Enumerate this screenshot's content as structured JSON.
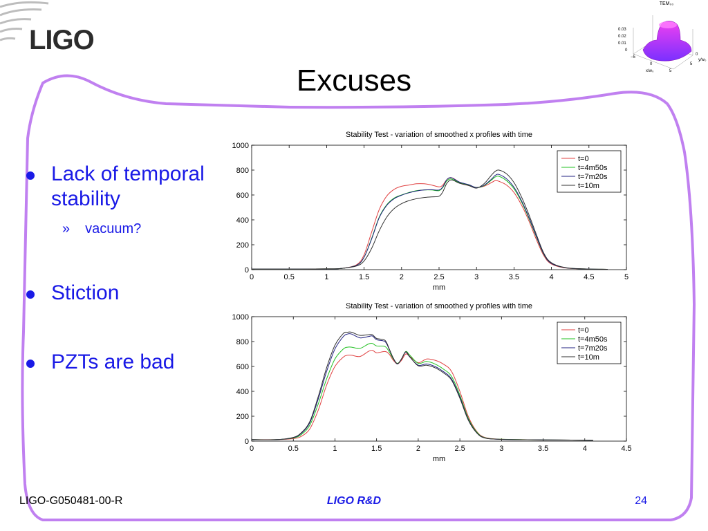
{
  "header": {
    "logo_text": "LIGO",
    "title": "Excuses"
  },
  "mode_plot": {
    "title": "TEM₀₀",
    "z_ticks": [
      "0.03",
      "0.02",
      "0.01",
      "0"
    ],
    "x_ticks": [
      "−5",
      "0",
      "5"
    ],
    "y_ticks": [
      "0",
      "5"
    ],
    "x_label": "x/w₀",
    "y_label": "y/w₀",
    "colors": {
      "top": "#f040f0",
      "bottom": "#7a30ff"
    }
  },
  "bullets": [
    {
      "text": "Lack of temporal stability",
      "sub": [
        "vacuum?"
      ]
    },
    {
      "text": "Stiction",
      "sub": []
    },
    {
      "text": "PZTs are bad",
      "sub": []
    }
  ],
  "sub_marker": "»",
  "footer": {
    "left": "LIGO-G050481-00-R",
    "center": "LIGO R&D",
    "right": "24"
  },
  "chart_data": [
    {
      "type": "line",
      "title": "Stability Test - variation of smoothed x profiles with time",
      "xlabel": "mm",
      "ylabel": "",
      "xlim": [
        0,
        5
      ],
      "ylim": [
        0,
        1000
      ],
      "xticks": [
        0,
        0.5,
        1,
        1.5,
        2,
        2.5,
        3,
        3.5,
        4,
        4.5,
        5
      ],
      "yticks": [
        0,
        200,
        400,
        600,
        800,
        1000
      ],
      "legend": "top-right",
      "x": [
        0,
        0.5,
        1,
        1.2,
        1.4,
        1.5,
        1.6,
        1.7,
        1.8,
        1.9,
        2,
        2.1,
        2.2,
        2.3,
        2.4,
        2.5,
        2.55,
        2.6,
        2.65,
        2.7,
        2.75,
        2.8,
        2.9,
        3,
        3.1,
        3.2,
        3.25,
        3.3,
        3.4,
        3.5,
        3.6,
        3.7,
        3.8,
        3.9,
        4,
        4.2,
        4.5,
        4.75
      ],
      "series": [
        {
          "name": "t=0",
          "color": "#e04040",
          "values": [
            5,
            5,
            6,
            10,
            40,
            120,
            300,
            480,
            590,
            645,
            670,
            680,
            690,
            690,
            680,
            665,
            680,
            720,
            740,
            730,
            710,
            690,
            675,
            660,
            670,
            700,
            715,
            710,
            680,
            620,
            520,
            390,
            240,
            110,
            45,
            12,
            5,
            3
          ]
        },
        {
          "name": "t=4m50s",
          "color": "#20c020",
          "values": [
            5,
            5,
            6,
            10,
            35,
            100,
            250,
            420,
            520,
            575,
            600,
            620,
            635,
            640,
            640,
            635,
            660,
            710,
            730,
            720,
            705,
            695,
            680,
            660,
            675,
            720,
            745,
            750,
            715,
            650,
            545,
            410,
            260,
            120,
            50,
            14,
            5,
            3
          ]
        },
        {
          "name": "t=7m20s",
          "color": "#202080",
          "values": [
            5,
            5,
            6,
            10,
            35,
            100,
            245,
            415,
            515,
            570,
            598,
            618,
            632,
            640,
            642,
            640,
            665,
            720,
            740,
            728,
            710,
            698,
            682,
            660,
            678,
            728,
            758,
            765,
            730,
            662,
            555,
            418,
            265,
            122,
            50,
            14,
            5,
            3
          ]
        },
        {
          "name": "t=10m",
          "color": "#303030",
          "values": [
            5,
            5,
            6,
            10,
            30,
            70,
            170,
            310,
            420,
            490,
            530,
            555,
            570,
            580,
            585,
            590,
            625,
            690,
            720,
            715,
            700,
            690,
            675,
            655,
            690,
            760,
            790,
            800,
            770,
            700,
            585,
            440,
            280,
            130,
            55,
            15,
            5,
            3
          ]
        }
      ]
    },
    {
      "type": "line",
      "title": "Stability Test - variation of smoothed y profiles with time",
      "xlabel": "mm",
      "ylabel": "",
      "xlim": [
        0,
        4.5
      ],
      "ylim": [
        0,
        1000
      ],
      "xticks": [
        0,
        0.5,
        1,
        1.5,
        2,
        2.5,
        3,
        3.5,
        4,
        4.5
      ],
      "yticks": [
        0,
        200,
        400,
        600,
        800,
        1000
      ],
      "legend": "top-right",
      "x": [
        0,
        0.3,
        0.5,
        0.6,
        0.7,
        0.8,
        0.9,
        1.0,
        1.1,
        1.15,
        1.2,
        1.3,
        1.4,
        1.45,
        1.5,
        1.6,
        1.65,
        1.7,
        1.75,
        1.8,
        1.85,
        1.9,
        2.0,
        2.1,
        2.2,
        2.3,
        2.4,
        2.5,
        2.6,
        2.7,
        2.8,
        3.0,
        3.5,
        4.0,
        4.1
      ],
      "series": [
        {
          "name": "t=0",
          "color": "#e04040",
          "values": [
            12,
            12,
            20,
            40,
            100,
            250,
            450,
            600,
            675,
            690,
            690,
            680,
            720,
            730,
            710,
            720,
            700,
            650,
            620,
            650,
            700,
            680,
            630,
            660,
            650,
            620,
            560,
            400,
            200,
            80,
            30,
            15,
            10,
            8,
            6
          ]
        },
        {
          "name": "t=4m50s",
          "color": "#20c020",
          "values": [
            12,
            12,
            25,
            55,
            130,
            300,
            500,
            660,
            740,
            755,
            755,
            745,
            780,
            785,
            765,
            760,
            720,
            660,
            625,
            660,
            720,
            690,
            625,
            640,
            620,
            580,
            520,
            370,
            185,
            75,
            28,
            15,
            10,
            8,
            6
          ]
        },
        {
          "name": "t=7m20s",
          "color": "#202080",
          "values": [
            12,
            12,
            28,
            65,
            150,
            340,
            560,
            740,
            840,
            860,
            860,
            830,
            840,
            845,
            815,
            800,
            740,
            665,
            620,
            660,
            715,
            675,
            610,
            620,
            600,
            560,
            500,
            355,
            175,
            70,
            26,
            14,
            10,
            8,
            6
          ]
        },
        {
          "name": "t=10m",
          "color": "#303030",
          "values": [
            12,
            12,
            30,
            70,
            160,
            360,
            590,
            770,
            865,
            875,
            875,
            850,
            855,
            855,
            825,
            810,
            745,
            668,
            622,
            662,
            718,
            678,
            605,
            610,
            590,
            550,
            490,
            345,
            170,
            68,
            25,
            14,
            10,
            8,
            6
          ]
        }
      ]
    }
  ]
}
